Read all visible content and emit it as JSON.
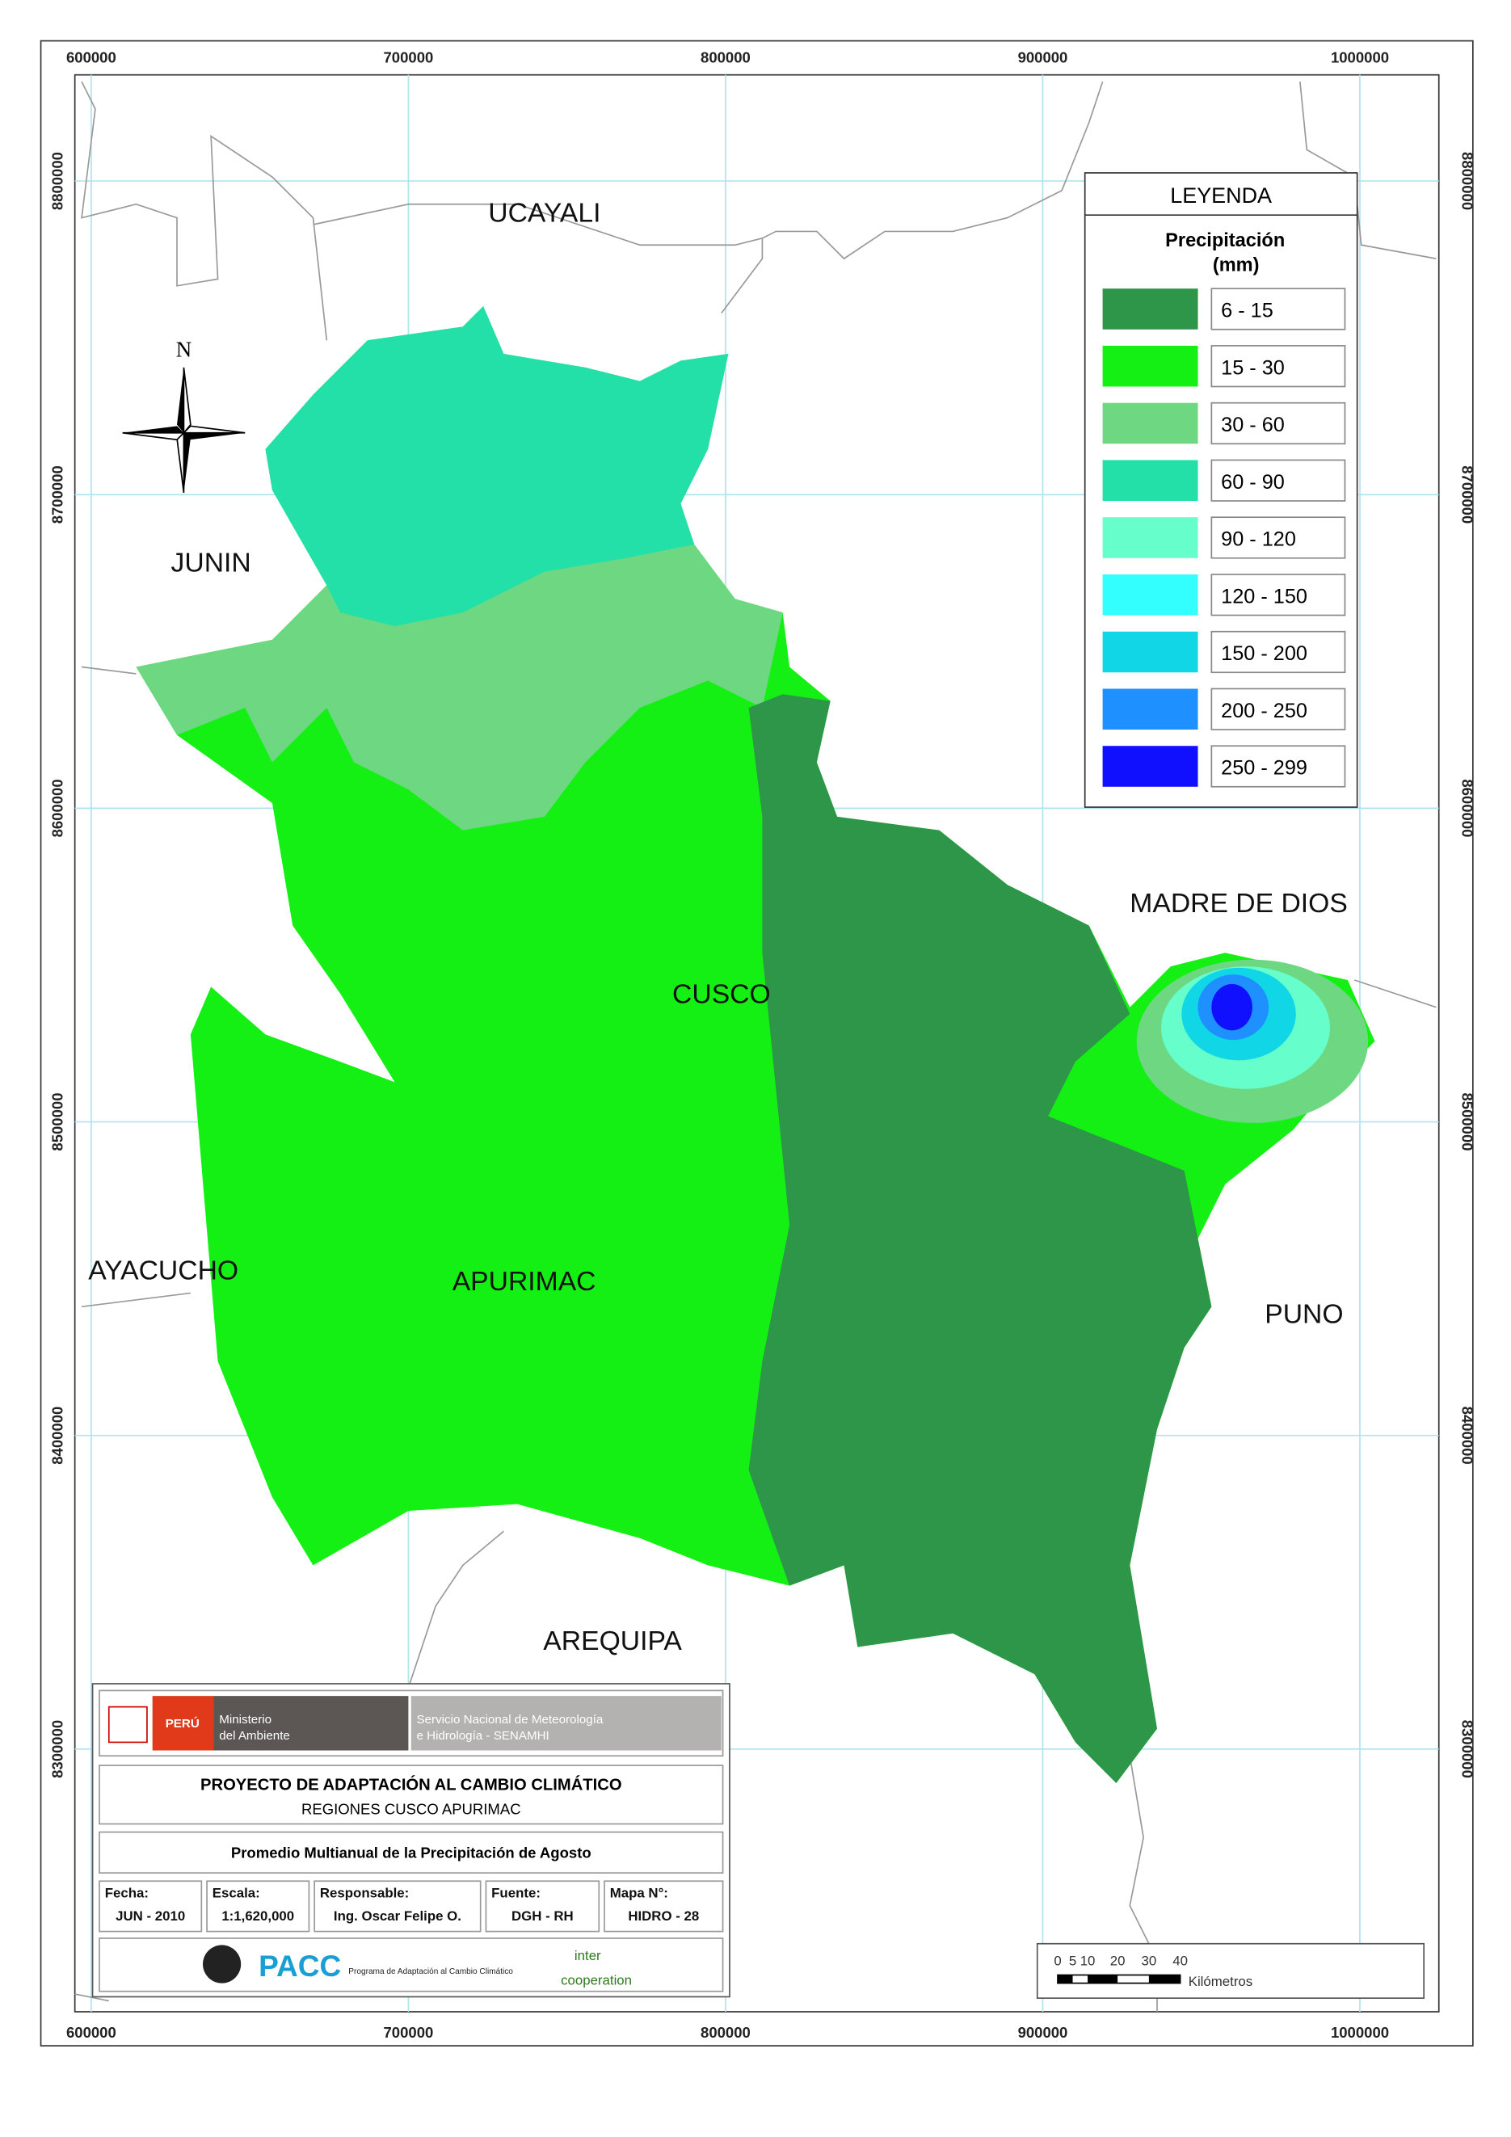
{
  "map": {
    "x_ticks": [
      600000,
      700000,
      800000,
      900000,
      1000000
    ],
    "y_ticks": [
      8800000,
      8700000,
      8600000,
      8500000,
      8400000,
      8300000
    ],
    "north": "N",
    "regions": [
      "UCAYALI",
      "JUNIN",
      "MADRE DE DIOS",
      "CUSCO",
      "AYACUCHO",
      "APURIMAC",
      "PUNO",
      "AREQUIPA"
    ],
    "legend": {
      "title": "LEYENDA",
      "subtitle_1": "Precipitación",
      "subtitle_2": "(mm)",
      "items": [
        {
          "label": "6 - 15",
          "color": "#2e9648"
        },
        {
          "label": "15 - 30",
          "color": "#14f014"
        },
        {
          "label": "30 - 60",
          "color": "#6ed782"
        },
        {
          "label": "60 - 90",
          "color": "#22e0a8"
        },
        {
          "label": "90 - 120",
          "color": "#66ffcc"
        },
        {
          "label": "120 - 150",
          "color": "#33ffff"
        },
        {
          "label": "150 - 200",
          "color": "#10d6e6"
        },
        {
          "label": "200 - 250",
          "color": "#1e90ff"
        },
        {
          "label": "250 - 299",
          "color": "#1010ff"
        }
      ]
    },
    "title_block": {
      "peru": "PERÚ",
      "ministry_1": "Ministerio",
      "ministry_2": "del Ambiente",
      "senamhi_1": "Servicio Nacional de Meteorología",
      "senamhi_2": "e Hidrología - SENAMHI",
      "project": "PROYECTO DE ADAPTACIÓN AL CAMBIO CLIMÁTICO",
      "regions": "REGIONES CUSCO APURIMAC",
      "map_title": "Promedio Multianual de la Precipitación de Agosto",
      "fields": [
        {
          "label": "Fecha:",
          "value": "JUN - 2010"
        },
        {
          "label": "Escala:",
          "value": "1:1,620,000"
        },
        {
          "label": "Responsable:",
          "value": "Ing. Oscar Felipe O."
        },
        {
          "label": "Fuente:",
          "value": "DGH - RH"
        },
        {
          "label": "Mapa N°:",
          "value": "HIDRO - 28"
        }
      ],
      "pacc": "PACC",
      "pacc_name": "Programa de Adaptación al Cambio Climático",
      "inter_1": "inter",
      "inter_2": "cooperation"
    },
    "scale_bar": {
      "ticks": [
        "0",
        "5",
        "10",
        "20",
        "30",
        "40"
      ],
      "unit": "Kilómetros"
    }
  }
}
